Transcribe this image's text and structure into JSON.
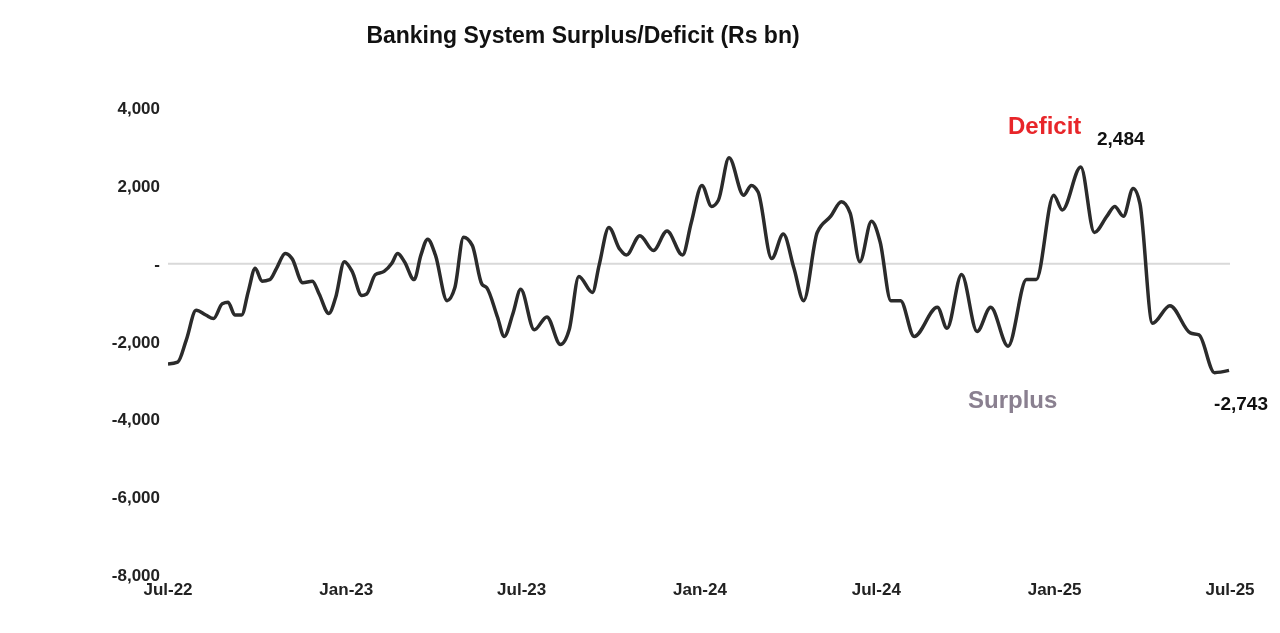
{
  "chart_data": {
    "type": "line",
    "title": "Banking System Surplus/Deficit (Rs bn)",
    "annotations": [
      "Deficit",
      "Surplus"
    ],
    "xlim": [
      "2022-07",
      "2025-07"
    ],
    "xticks": [
      {
        "value": "2022-07",
        "label": "Jul-22"
      },
      {
        "value": "2023-01",
        "label": "Jan-23"
      },
      {
        "value": "2023-07",
        "label": "Jul-23"
      },
      {
        "value": "2024-01",
        "label": "Jan-24"
      },
      {
        "value": "2024-07",
        "label": "Jul-24"
      },
      {
        "value": "2025-01",
        "label": "Jan-25"
      },
      {
        "value": "2025-07",
        "label": "Jul-25"
      }
    ],
    "ylim": [
      -8000,
      4000
    ],
    "yticks": [
      {
        "value": -8000,
        "label": "-8,000"
      },
      {
        "value": -6000,
        "label": "-6,000"
      },
      {
        "value": -4000,
        "label": "-4,000"
      },
      {
        "value": -2000,
        "label": "-2,000"
      },
      {
        "value": 0,
        "label": "-"
      },
      {
        "value": 2000,
        "label": "2,000"
      },
      {
        "value": 4000,
        "label": "4,000"
      }
    ],
    "marker": "none",
    "line_style": "solid",
    "ref_lines": [
      {
        "axis": "y",
        "value": 0,
        "color": "#d9d9d9"
      }
    ],
    "series": [
      {
        "color": "#2b2b2b",
        "x": [
          "2022-07-01",
          "2022-07-11",
          "2022-07-20",
          "2022-07-30",
          "2022-08-09",
          "2022-08-17",
          "2022-08-26",
          "2022-09-01",
          "2022-09-08",
          "2022-09-15",
          "2022-09-22",
          "2022-09-29",
          "2022-10-06",
          "2022-10-14",
          "2022-10-21",
          "2022-10-30",
          "2022-11-06",
          "2022-11-17",
          "2022-11-27",
          "2022-12-04",
          "2022-12-14",
          "2022-12-21",
          "2022-12-30",
          "2023-01-07",
          "2023-01-17",
          "2023-01-22",
          "2023-01-31",
          "2023-02-09",
          "2023-02-17",
          "2023-02-23",
          "2023-03-02",
          "2023-03-12",
          "2023-03-19",
          "2023-03-26",
          "2023-04-03",
          "2023-04-15",
          "2023-04-23",
          "2023-05-02",
          "2023-05-11",
          "2023-05-21",
          "2023-05-26",
          "2023-06-06",
          "2023-06-13",
          "2023-06-22",
          "2023-06-30",
          "2023-07-14",
          "2023-07-27",
          "2023-08-10",
          "2023-08-19",
          "2023-08-29",
          "2023-09-12",
          "2023-09-19",
          "2023-09-29",
          "2023-10-10",
          "2023-10-17",
          "2023-10-31",
          "2023-11-14",
          "2023-11-28",
          "2023-12-14",
          "2023-12-23",
          "2024-01-03",
          "2024-01-13",
          "2024-01-20",
          "2024-01-31",
          "2024-02-15",
          "2024-02-23",
          "2024-03-01",
          "2024-03-15",
          "2024-03-27",
          "2024-04-07",
          "2024-04-17",
          "2024-05-01",
          "2024-05-15",
          "2024-05-26",
          "2024-06-04",
          "2024-06-14",
          "2024-06-26",
          "2024-07-05",
          "2024-07-16",
          "2024-07-26",
          "2024-08-09",
          "2024-09-02",
          "2024-09-12",
          "2024-09-27",
          "2024-10-13",
          "2024-10-27",
          "2024-11-14",
          "2024-12-03",
          "2024-12-13",
          "2024-12-31",
          "2025-01-09",
          "2025-01-28",
          "2025-02-11",
          "2025-02-24",
          "2025-03-04",
          "2025-03-13",
          "2025-03-23",
          "2025-03-30",
          "2025-04-12",
          "2025-04-30",
          "2025-05-21",
          "2025-05-30",
          "2025-06-15",
          "2025-06-30"
        ],
        "values": [
          -2580,
          -2530,
          -1950,
          -1200,
          -1320,
          -1410,
          -1030,
          -990,
          -1320,
          -1320,
          -700,
          -120,
          -450,
          -410,
          -120,
          260,
          130,
          -490,
          -450,
          -780,
          -1280,
          -870,
          50,
          -200,
          -820,
          -780,
          -280,
          -200,
          10,
          260,
          50,
          -410,
          220,
          630,
          220,
          -950,
          -620,
          680,
          470,
          -530,
          -620,
          -1370,
          -1870,
          -1280,
          -660,
          -1700,
          -1370,
          -2080,
          -1700,
          -330,
          -740,
          -30,
          930,
          380,
          220,
          720,
          340,
          840,
          220,
          1050,
          2010,
          1470,
          1630,
          2720,
          1760,
          2010,
          1840,
          130,
          760,
          -120,
          -950,
          800,
          1220,
          1590,
          1300,
          50,
          1090,
          550,
          -950,
          -950,
          -1870,
          -1120,
          -1660,
          -280,
          -1740,
          -1120,
          -2120,
          -410,
          -410,
          1760,
          1380,
          2484,
          800,
          1220,
          1470,
          1220,
          1930,
          1550,
          -1530,
          -1080,
          -1780,
          -1830,
          -2800,
          -2743
        ],
        "value_labels": [
          null,
          null,
          null,
          null,
          null,
          null,
          null,
          null,
          null,
          null,
          null,
          null,
          null,
          null,
          null,
          null,
          null,
          null,
          null,
          null,
          null,
          null,
          null,
          null,
          null,
          null,
          null,
          null,
          null,
          null,
          null,
          null,
          null,
          null,
          null,
          null,
          null,
          null,
          null,
          null,
          null,
          null,
          null,
          null,
          null,
          null,
          null,
          null,
          null,
          null,
          null,
          null,
          null,
          null,
          null,
          null,
          null,
          null,
          null,
          null,
          null,
          null,
          null,
          null,
          null,
          null,
          null,
          null,
          null,
          null,
          null,
          null,
          null,
          null,
          null,
          null,
          null,
          null,
          null,
          null,
          null,
          null,
          null,
          null,
          null,
          null,
          null,
          null,
          null,
          null,
          null,
          "2,484",
          null,
          null,
          null,
          null,
          null,
          null,
          null,
          null,
          null,
          null,
          null,
          "-2,743"
        ]
      }
    ]
  }
}
